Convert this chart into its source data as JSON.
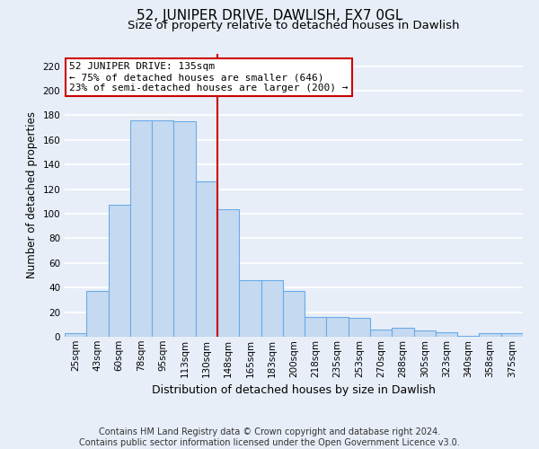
{
  "title": "52, JUNIPER DRIVE, DAWLISH, EX7 0GL",
  "subtitle": "Size of property relative to detached houses in Dawlish",
  "xlabel": "Distribution of detached houses by size in Dawlish",
  "ylabel": "Number of detached properties",
  "footer_line1": "Contains HM Land Registry data © Crown copyright and database right 2024.",
  "footer_line2": "Contains public sector information licensed under the Open Government Licence v3.0.",
  "bin_labels": [
    "25sqm",
    "43sqm",
    "60sqm",
    "78sqm",
    "95sqm",
    "113sqm",
    "130sqm",
    "148sqm",
    "165sqm",
    "183sqm",
    "200sqm",
    "218sqm",
    "235sqm",
    "253sqm",
    "270sqm",
    "288sqm",
    "305sqm",
    "323sqm",
    "340sqm",
    "358sqm",
    "375sqm"
  ],
  "bar_values": [
    3,
    37,
    107,
    176,
    176,
    175,
    126,
    104,
    46,
    46,
    37,
    16,
    16,
    15,
    6,
    7,
    5,
    4,
    1,
    3,
    3
  ],
  "bar_color": "#c5d9f0",
  "bar_edgecolor": "#6aabe8",
  "bar_linewidth": 0.8,
  "vline_color": "#cc0000",
  "annotation_text": "52 JUNIPER DRIVE: 135sqm\n← 75% of detached houses are smaller (646)\n23% of semi-detached houses are larger (200) →",
  "annotation_box_color": "#ffffff",
  "annotation_box_edgecolor": "#cc0000",
  "annotation_fontsize": 8,
  "ylim": [
    0,
    230
  ],
  "yticks": [
    0,
    20,
    40,
    60,
    80,
    100,
    120,
    140,
    160,
    180,
    200,
    220
  ],
  "title_fontsize": 11,
  "subtitle_fontsize": 9.5,
  "xlabel_fontsize": 9,
  "ylabel_fontsize": 8.5,
  "tick_fontsize": 7.5,
  "footer_fontsize": 7,
  "background_color": "#e8eef8",
  "axes_background": "#e8eef8",
  "grid_color": "#ffffff",
  "grid_linewidth": 1.2
}
